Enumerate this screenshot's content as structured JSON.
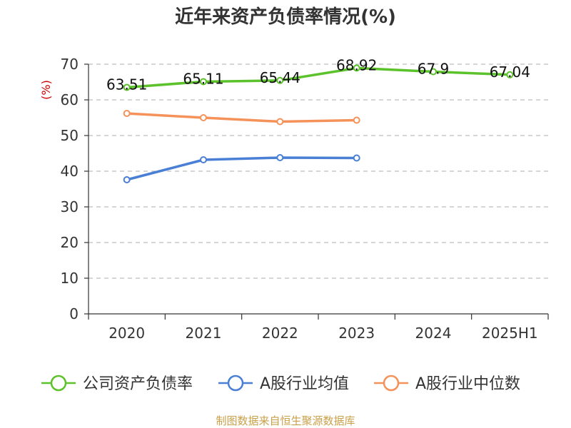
{
  "chart_data": {
    "type": "line",
    "title": "近年来资产负债率情况(%)",
    "ylabel": "(%)",
    "xlabel": "",
    "ylim": [
      0,
      70
    ],
    "yticks": [
      0,
      10,
      20,
      30,
      40,
      50,
      60,
      70
    ],
    "categories": [
      "2020",
      "2021",
      "2022",
      "2023",
      "2024",
      "2025H1"
    ],
    "grid": true,
    "legend_position": "bottom",
    "series": [
      {
        "name": "公司资产负债率",
        "color": "#5cc22b",
        "values": [
          63.51,
          65.11,
          65.44,
          68.92,
          67.9,
          67.04
        ],
        "labels": [
          "63.51",
          "65.11",
          "65.44",
          "68.92",
          "67.9",
          "67.04"
        ]
      },
      {
        "name": "A股行业均值",
        "color": "#4a7fd6",
        "values": [
          37.6,
          43.2,
          43.8,
          43.7,
          null,
          null
        ]
      },
      {
        "name": "A股行业中位数",
        "color": "#f4925a",
        "values": [
          56.2,
          55.0,
          53.9,
          54.3,
          null,
          null
        ]
      }
    ]
  },
  "source": "制图数据来自恒生聚源数据库"
}
